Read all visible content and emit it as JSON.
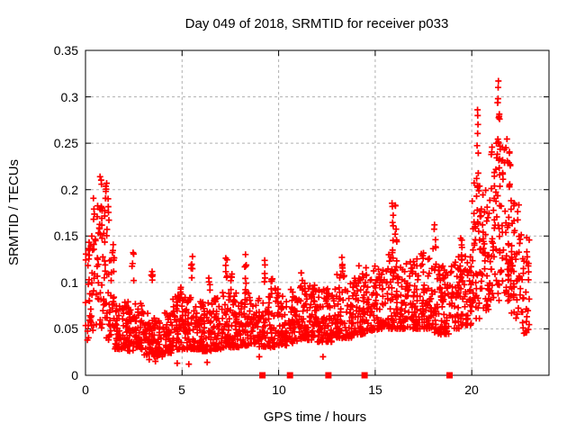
{
  "rng_seed": 49,
  "chart_data": {
    "type": "scatter",
    "title": "Day 049 of 2018, SRMTID for receiver p033",
    "xlabel": "GPS time / hours",
    "ylabel": "SRMTID / TECUs",
    "xlim": [
      0,
      24
    ],
    "ylim": [
      0,
      0.35
    ],
    "xticks": [
      0,
      5,
      10,
      15,
      20
    ],
    "yticks": [
      0,
      0.05,
      0.1,
      0.15,
      0.2,
      0.25,
      0.3,
      0.35
    ],
    "xticklabels": [
      "0",
      "5",
      "10",
      "15",
      "20"
    ],
    "yticklabels": [
      "0",
      "0.05",
      "0.1",
      "0.15",
      "0.2",
      "0.25",
      "0.3",
      "0.35"
    ],
    "grid": true,
    "legend": "none",
    "style": {
      "marker": "plus",
      "marker_color": "#ff0000",
      "marker_size": 7,
      "grid_color": "#b0b0b0",
      "frame_color": "#000000",
      "background": "#ffffff"
    },
    "series": [
      {
        "name": "SRMTID",
        "marker": "plus",
        "color": "#ff0000",
        "cloud_bins": {
          "format": [
            "x_start",
            "x_end",
            "count",
            "y_min",
            "y_max",
            "skew_exp"
          ],
          "bins": [
            [
              0,
              0.5,
              40,
              0.04,
              0.155,
              1.2
            ],
            [
              0.5,
              1,
              42,
              0.05,
              0.185,
              1.25
            ],
            [
              1,
              1.5,
              46,
              0.038,
              0.16,
              1.5
            ],
            [
              1.5,
              2,
              48,
              0.028,
              0.075,
              1.6
            ],
            [
              2,
              2.5,
              48,
              0.026,
              0.08,
              1.7
            ],
            [
              2.5,
              3,
              48,
              0.028,
              0.078,
              1.7
            ],
            [
              3,
              3.5,
              48,
              0.022,
              0.068,
              1.6
            ],
            [
              3.5,
              4,
              48,
              0.02,
              0.062,
              1.6
            ],
            [
              4,
              4.5,
              48,
              0.024,
              0.068,
              1.6
            ],
            [
              4.5,
              5,
              48,
              0.028,
              0.088,
              1.6
            ],
            [
              5,
              5.5,
              48,
              0.028,
              0.085,
              1.7
            ],
            [
              5.5,
              6,
              48,
              0.028,
              0.08,
              1.7
            ],
            [
              6,
              6.5,
              48,
              0.026,
              0.08,
              1.7
            ],
            [
              6.5,
              7,
              48,
              0.028,
              0.085,
              1.7
            ],
            [
              7,
              7.5,
              48,
              0.03,
              0.09,
              1.7
            ],
            [
              7.5,
              8,
              48,
              0.03,
              0.095,
              1.7
            ],
            [
              8,
              8.5,
              48,
              0.032,
              0.1,
              1.7
            ],
            [
              8.5,
              9,
              46,
              0.034,
              0.09,
              1.7
            ],
            [
              9,
              9.5,
              44,
              0.03,
              0.085,
              1.7
            ],
            [
              9.5,
              10,
              44,
              0.03,
              0.095,
              1.7
            ],
            [
              10,
              10.5,
              44,
              0.032,
              0.088,
              1.7
            ],
            [
              10.5,
              11,
              44,
              0.034,
              0.095,
              1.7
            ],
            [
              11,
              11.5,
              46,
              0.038,
              0.105,
              1.7
            ],
            [
              11.5,
              12,
              46,
              0.038,
              0.1,
              1.7
            ],
            [
              12,
              12.5,
              46,
              0.036,
              0.095,
              1.7
            ],
            [
              12.5,
              13,
              46,
              0.036,
              0.1,
              1.7
            ],
            [
              13,
              13.5,
              46,
              0.04,
              0.11,
              1.7
            ],
            [
              13.5,
              14,
              46,
              0.04,
              0.11,
              1.7
            ],
            [
              14,
              14.5,
              46,
              0.044,
              0.115,
              1.7
            ],
            [
              14.5,
              15,
              46,
              0.048,
              0.12,
              1.7
            ],
            [
              15,
              15.5,
              46,
              0.048,
              0.115,
              1.7
            ],
            [
              15.5,
              16,
              46,
              0.05,
              0.13,
              1.6
            ],
            [
              16,
              16.5,
              46,
              0.05,
              0.125,
              1.6
            ],
            [
              16.5,
              17,
              46,
              0.05,
              0.13,
              1.6
            ],
            [
              17,
              17.5,
              46,
              0.05,
              0.135,
              1.6
            ],
            [
              17.5,
              18,
              46,
              0.05,
              0.14,
              1.6
            ],
            [
              18,
              18.5,
              46,
              0.044,
              0.12,
              1.7
            ],
            [
              18.5,
              19,
              46,
              0.044,
              0.12,
              1.7
            ],
            [
              19,
              19.5,
              46,
              0.05,
              0.13,
              1.6
            ],
            [
              19.5,
              20,
              46,
              0.054,
              0.14,
              1.6
            ],
            [
              20,
              20.5,
              48,
              0.06,
              0.21,
              1.3
            ],
            [
              20.5,
              21,
              48,
              0.07,
              0.2,
              1.3
            ],
            [
              21,
              21.5,
              50,
              0.08,
              0.25,
              1.3
            ],
            [
              21.5,
              22,
              50,
              0.08,
              0.26,
              1.3
            ],
            [
              22,
              22.5,
              46,
              0.06,
              0.2,
              1.35
            ],
            [
              22.5,
              23,
              32,
              0.045,
              0.165,
              1.4
            ]
          ]
        },
        "spike_columns": {
          "format": [
            "x",
            "y_min",
            "y_max",
            "count"
          ],
          "columns": [
            [
              0.42,
              0.155,
              0.196,
              4
            ],
            [
              0.8,
              0.16,
              0.218,
              6
            ],
            [
              1.08,
              0.185,
              0.215,
              6
            ],
            [
              1.18,
              0.15,
              0.2,
              4
            ],
            [
              2.45,
              0.1,
              0.138,
              5
            ],
            [
              3.45,
              0.085,
              0.113,
              5
            ],
            [
              4.95,
              0.08,
              0.096,
              4
            ],
            [
              5.5,
              0.1,
              0.128,
              6
            ],
            [
              6.4,
              0.09,
              0.11,
              4
            ],
            [
              7.3,
              0.1,
              0.128,
              6
            ],
            [
              7.55,
              0.095,
              0.12,
              4
            ],
            [
              8.3,
              0.1,
              0.135,
              5
            ],
            [
              9.25,
              0.1,
              0.124,
              5
            ],
            [
              9.65,
              0.09,
              0.108,
              4
            ],
            [
              11.2,
              0.09,
              0.115,
              4
            ],
            [
              13.3,
              0.1,
              0.128,
              5
            ],
            [
              14.2,
              0.1,
              0.12,
              4
            ],
            [
              15.9,
              0.12,
              0.186,
              8
            ],
            [
              16.08,
              0.11,
              0.19,
              6
            ],
            [
              17.45,
              0.11,
              0.142,
              5
            ],
            [
              18.1,
              0.11,
              0.165,
              6
            ],
            [
              19.45,
              0.11,
              0.15,
              5
            ],
            [
              20.3,
              0.2,
              0.286,
              8
            ],
            [
              20.32,
              0.15,
              0.2,
              4
            ],
            [
              21.38,
              0.24,
              0.318,
              6
            ],
            [
              21.42,
              0.2,
              0.28,
              5
            ],
            [
              21.95,
              0.2,
              0.26,
              5
            ],
            [
              22.2,
              0.15,
              0.22,
              4
            ],
            [
              22.85,
              0.12,
              0.155,
              4
            ]
          ]
        },
        "extra_points": [
          [
            0.1,
            0.038
          ],
          [
            3.3,
            0.017
          ],
          [
            3.62,
            0.015
          ],
          [
            4.75,
            0.013
          ],
          [
            5.35,
            0.012
          ],
          [
            6.3,
            0.014
          ],
          [
            9.0,
            0.02
          ],
          [
            12.3,
            0.02
          ],
          [
            20.3,
            0.286
          ],
          [
            21.36,
            0.298
          ],
          [
            21.38,
            0.317
          ],
          [
            21.42,
            0.279
          ],
          [
            21.44,
            0.276
          ]
        ]
      }
    ],
    "axis_markers": {
      "shape": "filled-square",
      "color": "#ff0000",
      "y": 0,
      "x": [
        9.16,
        10.59,
        12.58,
        14.45,
        18.85
      ]
    }
  }
}
